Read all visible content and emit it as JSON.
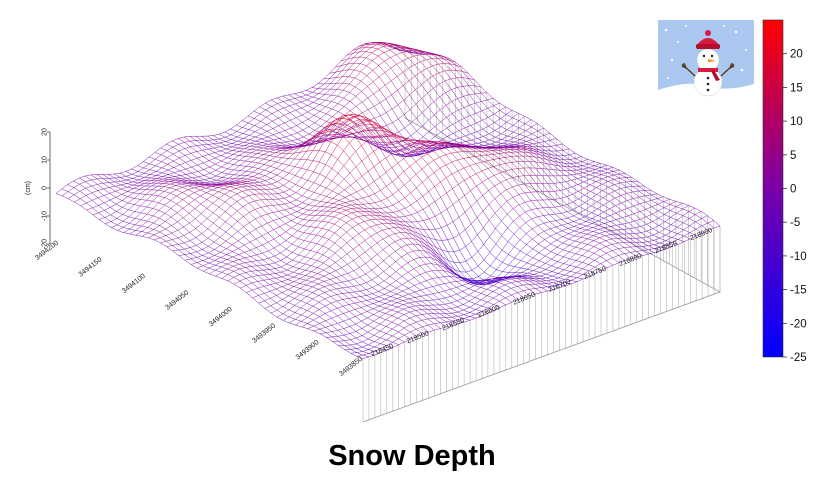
{
  "chart_data": {
    "type": "surface",
    "title": "Snow Depth",
    "zlabel": "(cm)",
    "zlim": [
      -25,
      25
    ],
    "z_ticks": [
      "20",
      "10",
      "0",
      "-10",
      "-20"
    ],
    "x_ticks": [
      "218450",
      "218500",
      "218550",
      "218600",
      "218650",
      "218700",
      "218750",
      "218800",
      "218850",
      "218900"
    ],
    "y_ticks": [
      "3494200",
      "3494150",
      "3494100",
      "3494050",
      "3494000",
      "3493950",
      "3493900",
      "3493850"
    ],
    "colorbar": {
      "ticks": [
        "20",
        "15",
        "10",
        "5",
        "0",
        "-5",
        "-10",
        "-15",
        "-20",
        "-25"
      ],
      "range": [
        -25,
        25
      ],
      "colors": {
        "low": "#0000ff",
        "mid": "#7a00a8",
        "high": "#ff0000"
      }
    },
    "ridges": [
      {
        "x": 0.52,
        "y": 0.38,
        "height": 22
      },
      {
        "x": 0.86,
        "y": 0.12,
        "height": 15
      },
      {
        "x": 0.7,
        "y": 0.55,
        "height": 14
      },
      {
        "x": 0.35,
        "y": 0.62,
        "height": 10
      },
      {
        "x": 0.2,
        "y": 0.3,
        "height": 8
      }
    ],
    "troughs": [
      {
        "x": 0.55,
        "y": 0.75,
        "depth": -12
      },
      {
        "x": 0.75,
        "y": 0.3,
        "depth": -8
      }
    ]
  },
  "icon": {
    "name": "snowman-icon"
  },
  "caption": "Snow Depth"
}
